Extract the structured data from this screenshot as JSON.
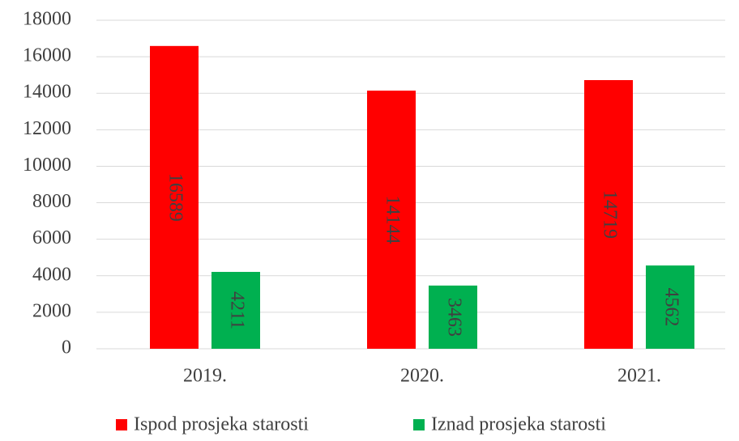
{
  "chart_data": {
    "type": "bar",
    "categories": [
      "2019.",
      "2020.",
      "2021."
    ],
    "series": [
      {
        "name": "Ispod prosjeka starosti",
        "color": "#ff0000",
        "values": [
          16589,
          14144,
          14719
        ]
      },
      {
        "name": "Iznad prosjeka starosti",
        "color": "#00b050",
        "values": [
          4211,
          3463,
          4562
        ]
      }
    ],
    "ylim": [
      0,
      18000
    ],
    "yticks": [
      0,
      2000,
      4000,
      6000,
      8000,
      10000,
      12000,
      14000,
      16000,
      18000
    ],
    "grid": true,
    "legend": "bottom"
  }
}
